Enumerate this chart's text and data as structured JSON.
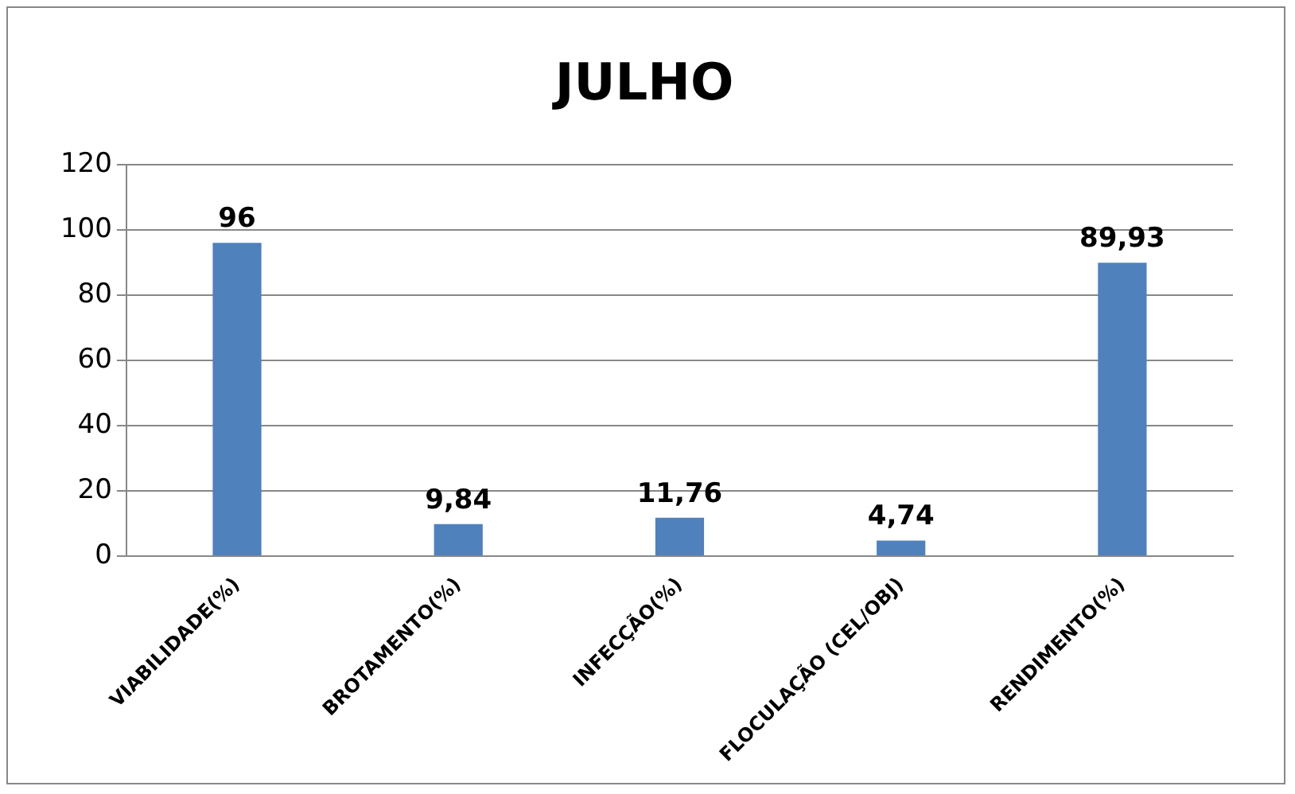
{
  "chart_data": {
    "type": "bar",
    "title": "JULHO",
    "categories": [
      "VIABILIDADE(%)",
      "BROTAMENTO(%)",
      "INFECÇÃO(%)",
      "FLOCULAÇÃO (CEL/OBJ)",
      "RENDIMENTO(%)"
    ],
    "values": [
      96,
      9.84,
      11.76,
      4.74,
      89.93
    ],
    "value_labels": [
      "96",
      "9,84",
      "11,76",
      "4,74",
      "89,93"
    ],
    "color": "#4f81bd",
    "ylim": [
      0,
      120
    ],
    "yticks": [
      0,
      20,
      40,
      60,
      80,
      100,
      120
    ],
    "grid": "y",
    "legend": false
  }
}
